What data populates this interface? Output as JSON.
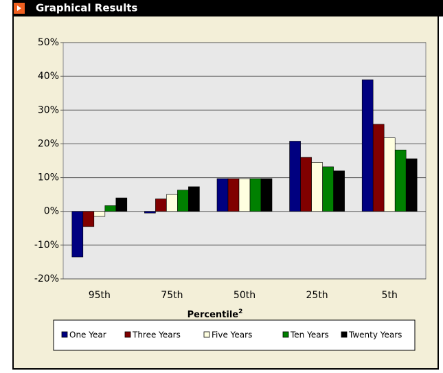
{
  "header": {
    "title": "Graphical Results"
  },
  "chart_data": {
    "type": "bar",
    "categories": [
      "95th",
      "75th",
      "50th",
      "25th",
      "5th"
    ],
    "xlabel": "Percentile",
    "xlabel_superscript": "2",
    "series": [
      {
        "name": "One Year",
        "color": "#000080",
        "values": [
          -13.5,
          -0.5,
          9.7,
          20.8,
          39
        ]
      },
      {
        "name": "Three Years",
        "color": "#800000",
        "values": [
          -4.5,
          3.7,
          9.7,
          16,
          25.8
        ]
      },
      {
        "name": "Five Years",
        "color": "#ffffe0",
        "values": [
          -1.5,
          5,
          9.7,
          14.5,
          21.8
        ]
      },
      {
        "name": "Ten Years",
        "color": "#008000",
        "values": [
          1.7,
          6.3,
          9.7,
          13.2,
          18.2
        ]
      },
      {
        "name": "Twenty Years",
        "color": "#000000",
        "values": [
          4,
          7.3,
          9.7,
          12,
          15.6
        ]
      }
    ],
    "ylim": [
      -20,
      50
    ],
    "yticks": [
      {
        "value": -20,
        "label": "-20%"
      },
      {
        "value": -10,
        "label": "-10%"
      },
      {
        "value": 0,
        "label": "0%"
      },
      {
        "value": 10,
        "label": "10%"
      },
      {
        "value": 20,
        "label": "20%"
      },
      {
        "value": 30,
        "label": "30%"
      },
      {
        "value": 40,
        "label": "40%"
      },
      {
        "value": 50,
        "label": "50%"
      }
    ],
    "grid": true,
    "legend": "bottom"
  }
}
